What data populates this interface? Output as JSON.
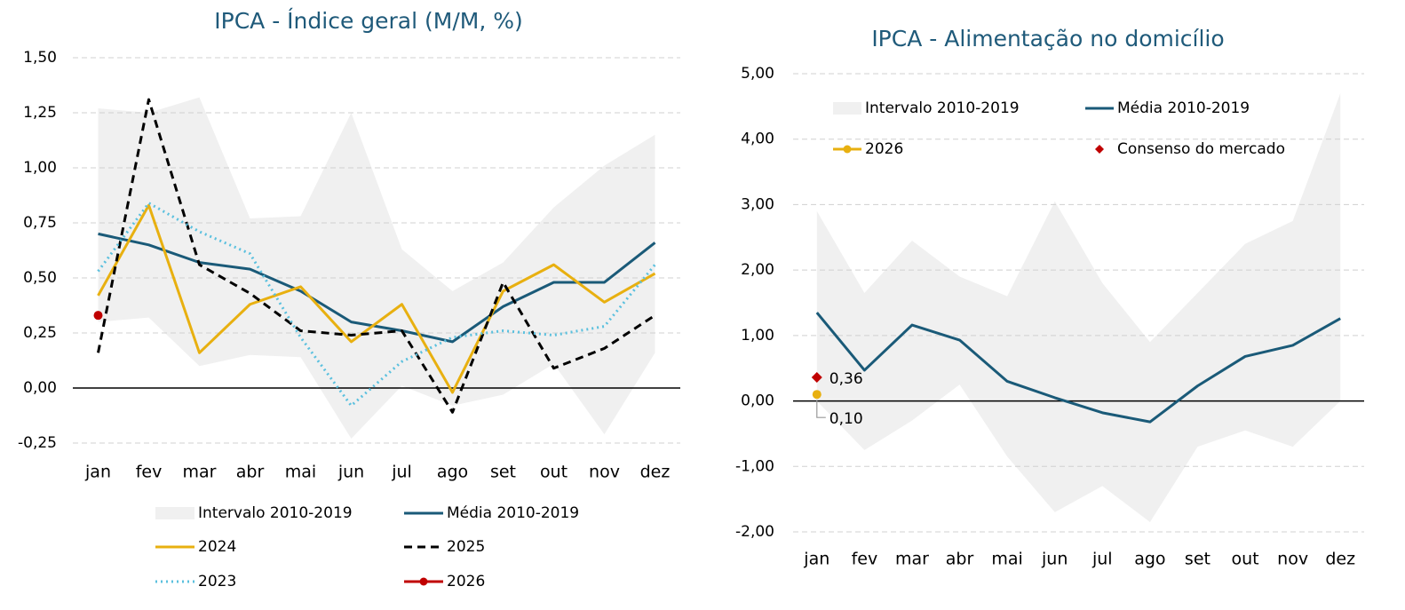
{
  "chart_data": [
    {
      "type": "line",
      "title": "IPCA - Índice geral (M/M, %)",
      "categories": [
        "jan",
        "fev",
        "mar",
        "abr",
        "mai",
        "jun",
        "jul",
        "ago",
        "set",
        "out",
        "nov",
        "dez"
      ],
      "ylim": [
        -0.25,
        1.5
      ],
      "yticks": [
        {
          "value": -0.25,
          "label": "-0,25"
        },
        {
          "value": 0,
          "label": "0,00"
        },
        {
          "value": 0.25,
          "label": "0,25"
        },
        {
          "value": 0.5,
          "label": "0,50"
        },
        {
          "value": 0.75,
          "label": "0,75"
        },
        {
          "value": 1,
          "label": "1,00"
        },
        {
          "value": 1.25,
          "label": "1,25"
        },
        {
          "value": 1.5,
          "label": "1,50"
        }
      ],
      "grid": true,
      "legend": "bottom",
      "series": [
        {
          "name": "Intervalo 2010-2019",
          "kind": "band",
          "color": "#f0f0f0",
          "upper": [
            1.27,
            1.25,
            1.32,
            0.77,
            0.78,
            1.25,
            0.63,
            0.44,
            0.57,
            0.82,
            1.01,
            1.15
          ],
          "lower": [
            0.3,
            0.32,
            0.1,
            0.15,
            0.14,
            -0.23,
            0.01,
            -0.08,
            -0.03,
            0.11,
            -0.21,
            0.16
          ]
        },
        {
          "name": "Média 2010-2019",
          "kind": "line",
          "style": "solid",
          "color": "#1a5a78",
          "values": [
            0.7,
            0.65,
            0.57,
            0.54,
            0.44,
            0.3,
            0.26,
            0.21,
            0.37,
            0.48,
            0.48,
            0.66
          ]
        },
        {
          "name": "2024",
          "kind": "line",
          "style": "solid",
          "color": "#e8b010",
          "values": [
            0.42,
            0.83,
            0.16,
            0.38,
            0.46,
            0.21,
            0.38,
            -0.02,
            0.44,
            0.56,
            0.39,
            0.52
          ]
        },
        {
          "name": "2025",
          "kind": "line",
          "style": "dashed",
          "color": "#000000",
          "values": [
            0.16,
            1.31,
            0.56,
            0.43,
            0.26,
            0.24,
            0.26,
            -0.11,
            0.48,
            0.09,
            0.18,
            0.33
          ]
        },
        {
          "name": "2023",
          "kind": "line",
          "style": "dotted",
          "color": "#5bc0de",
          "values": [
            0.53,
            0.84,
            0.71,
            0.61,
            0.23,
            -0.08,
            0.12,
            0.23,
            0.26,
            0.24,
            0.28,
            0.56
          ]
        },
        {
          "name": "2026",
          "kind": "line",
          "style": "solid",
          "marker": "circle",
          "color": "#c00000",
          "values": [
            0.33,
            null,
            null,
            null,
            null,
            null,
            null,
            null,
            null,
            null,
            null,
            null
          ]
        }
      ]
    },
    {
      "type": "line",
      "title": "IPCA - Alimentação no domicílio",
      "categories": [
        "jan",
        "fev",
        "mar",
        "abr",
        "mai",
        "jun",
        "jul",
        "ago",
        "set",
        "out",
        "nov",
        "dez"
      ],
      "ylim": [
        -2,
        5
      ],
      "yticks": [
        {
          "value": -2,
          "label": "-2,00"
        },
        {
          "value": -1,
          "label": "-1,00"
        },
        {
          "value": 0,
          "label": "0,00"
        },
        {
          "value": 1,
          "label": "1,00"
        },
        {
          "value": 2,
          "label": "2,00"
        },
        {
          "value": 3,
          "label": "3,00"
        },
        {
          "value": 4,
          "label": "4,00"
        },
        {
          "value": 5,
          "label": "5,00"
        }
      ],
      "grid": true,
      "legend": "top",
      "series": [
        {
          "name": "Intervalo 2010-2019",
          "kind": "band",
          "color": "#f0f0f0",
          "upper": [
            2.9,
            1.65,
            2.45,
            1.9,
            1.6,
            3.05,
            1.8,
            0.9,
            1.65,
            2.4,
            2.75,
            4.7
          ],
          "lower": [
            0,
            -0.75,
            -0.3,
            0.25,
            -0.85,
            -1.7,
            -1.3,
            -1.85,
            -0.7,
            -0.45,
            -0.7,
            0
          ]
        },
        {
          "name": "Média 2010-2019",
          "kind": "line",
          "style": "solid",
          "color": "#1a5a78",
          "values": [
            1.35,
            0.47,
            1.16,
            0.93,
            0.3,
            0.05,
            -0.18,
            -0.32,
            0.23,
            0.68,
            0.85,
            1.26
          ]
        },
        {
          "name": "2026",
          "kind": "line",
          "style": "solid",
          "marker": "circle",
          "color": "#e8b010",
          "values": [
            0.1,
            null,
            null,
            null,
            null,
            null,
            null,
            null,
            null,
            null,
            null,
            null
          ],
          "value_labels": [
            "0,10",
            null,
            null,
            null,
            null,
            null,
            null,
            null,
            null,
            null,
            null,
            null
          ]
        },
        {
          "name": "Consenso do mercado",
          "kind": "point",
          "marker": "diamond",
          "color": "#c00000",
          "values": [
            0.36,
            null,
            null,
            null,
            null,
            null,
            null,
            null,
            null,
            null,
            null,
            null
          ],
          "value_labels": [
            "0,36",
            null,
            null,
            null,
            null,
            null,
            null,
            null,
            null,
            null,
            null,
            null
          ]
        }
      ]
    }
  ]
}
